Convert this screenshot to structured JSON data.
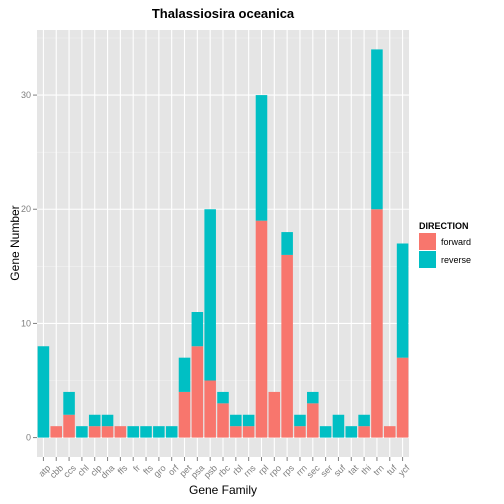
{
  "chart_data": {
    "type": "bar",
    "stacked": true,
    "title": "Thalassiosira oceanica",
    "xlabel": "Gene Family",
    "ylabel": "Gene Number",
    "ylim": [
      -1.7,
      35.7
    ],
    "yticks": [
      0,
      10,
      20,
      30
    ],
    "grid": true,
    "legend_position": "right",
    "categories": [
      "atp",
      "cbb",
      "ccs",
      "chl",
      "clp",
      "dna",
      "ffs",
      "fr",
      "fts",
      "gro",
      "orf",
      "pet",
      "psa",
      "psb",
      "rbc",
      "rbl",
      "rns",
      "rpl",
      "rpo",
      "rps",
      "rrn",
      "sec",
      "ser",
      "suf",
      "tat",
      "thi",
      "trn",
      "tuf",
      "ycf"
    ],
    "legend": {
      "title": "DIRECTION",
      "items": [
        {
          "label": "forward",
          "color": "#F8766D"
        },
        {
          "label": "reverse",
          "color": "#00BFC4"
        }
      ]
    },
    "series": [
      {
        "name": "forward",
        "color": "#F8766D",
        "values": [
          0,
          1,
          2,
          0,
          1,
          1,
          1,
          0,
          0,
          0,
          0,
          4,
          8,
          5,
          3,
          1,
          1,
          19,
          4,
          16,
          1,
          3,
          0,
          0,
          0,
          1,
          20,
          1,
          7
        ]
      },
      {
        "name": "reverse",
        "color": "#00BFC4",
        "values": [
          8,
          0,
          2,
          1,
          1,
          1,
          0,
          1,
          1,
          1,
          1,
          3,
          3,
          15,
          1,
          1,
          1,
          11,
          0,
          2,
          1,
          1,
          1,
          2,
          1,
          1,
          14,
          0,
          10
        ]
      }
    ]
  }
}
